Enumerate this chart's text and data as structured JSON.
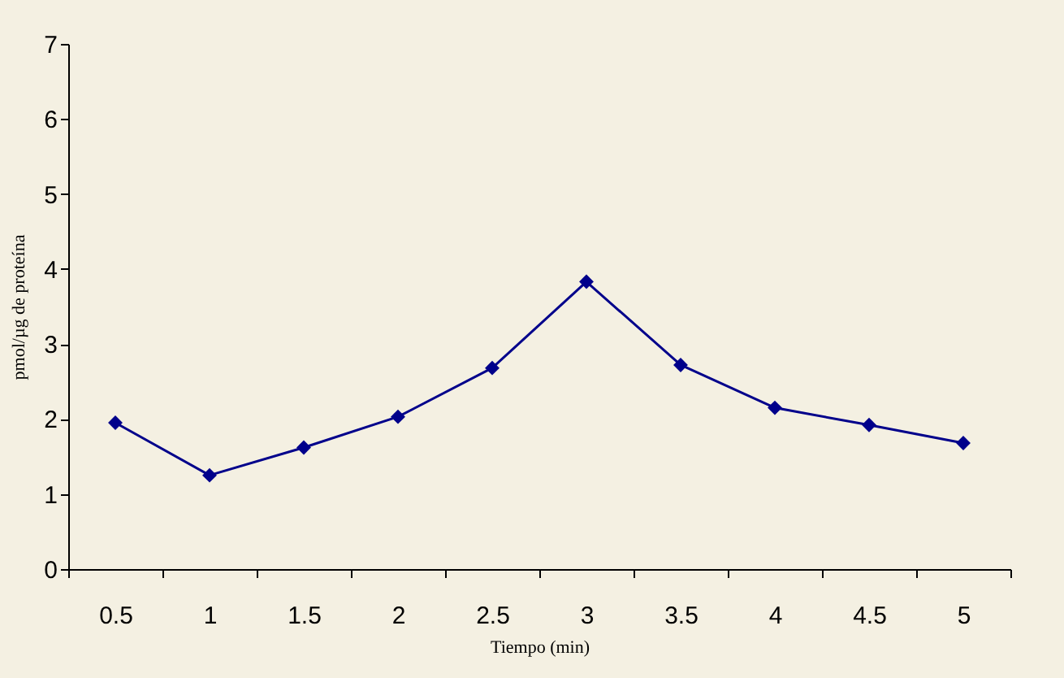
{
  "chart_data": {
    "type": "line",
    "xlabel": "Tiempo (min)",
    "ylabel": "pmol/µg de proteína",
    "categories": [
      "0.5",
      "1",
      "1.5",
      "2",
      "2.5",
      "3",
      "3.5",
      "4",
      "4.5",
      "5"
    ],
    "series": [
      {
        "color": "#00008b",
        "values": [
          1.95,
          1.25,
          1.62,
          2.03,
          2.68,
          3.83,
          2.72,
          2.15,
          1.92,
          1.68
        ]
      }
    ],
    "ylim": [
      0,
      7
    ],
    "yticks": [
      0,
      1,
      2,
      3,
      4,
      5,
      6,
      7
    ],
    "grid": false,
    "legend": false,
    "marker": "diamond",
    "line_style": "solid"
  }
}
